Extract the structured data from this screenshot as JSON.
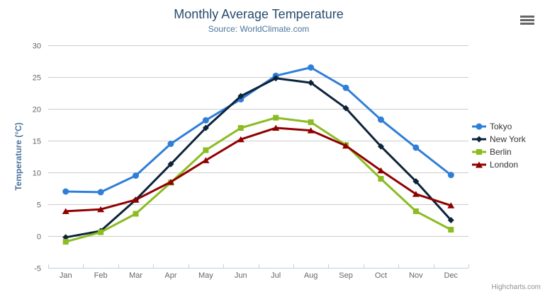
{
  "header": {
    "title": "Monthly Average Temperature",
    "subtitle": "Source: WorldClimate.com"
  },
  "icons": {
    "menu": "hamburger-icon"
  },
  "credit": {
    "label": "Highcharts.com"
  },
  "colors": {
    "title_text": "#274b6d",
    "subtitle_text": "#4d759e",
    "axis_title_text": "#4d759e",
    "tick_label": "#666666",
    "grid_line": "#cccccc",
    "axis_line": "#c0d0e0",
    "legend_text": "#333333",
    "credit_text": "#909090",
    "menu_icon": "#666666"
  },
  "chart_data": {
    "type": "line",
    "title": "Monthly Average Temperature",
    "subtitle": "Source: WorldClimate.com",
    "xlabel": "",
    "ylabel": "Temperature (°C)",
    "ylim": [
      -5,
      30
    ],
    "ytick_step": 5,
    "grid": true,
    "legend_position": "right",
    "categories": [
      "Jan",
      "Feb",
      "Mar",
      "Apr",
      "May",
      "Jun",
      "Jul",
      "Aug",
      "Sep",
      "Oct",
      "Nov",
      "Dec"
    ],
    "series": [
      {
        "name": "Tokyo",
        "color": "#2f7ed8",
        "marker": "circle",
        "values": [
          7.0,
          6.9,
          9.5,
          14.5,
          18.2,
          21.5,
          25.2,
          26.5,
          23.3,
          18.3,
          13.9,
          9.6
        ]
      },
      {
        "name": "New York",
        "color": "#0d233a",
        "marker": "diamond",
        "values": [
          -0.2,
          0.8,
          5.7,
          11.3,
          17.0,
          22.0,
          24.8,
          24.1,
          20.1,
          14.1,
          8.6,
          2.5
        ]
      },
      {
        "name": "Berlin",
        "color": "#8bbc21",
        "marker": "square",
        "values": [
          -0.9,
          0.6,
          3.5,
          8.4,
          13.5,
          17.0,
          18.6,
          17.9,
          14.3,
          9.0,
          3.9,
          1.0
        ]
      },
      {
        "name": "London",
        "color": "#910000",
        "marker": "triangle",
        "values": [
          3.9,
          4.2,
          5.7,
          8.5,
          11.9,
          15.2,
          17.0,
          16.6,
          14.2,
          10.3,
          6.6,
          4.8
        ]
      }
    ]
  }
}
